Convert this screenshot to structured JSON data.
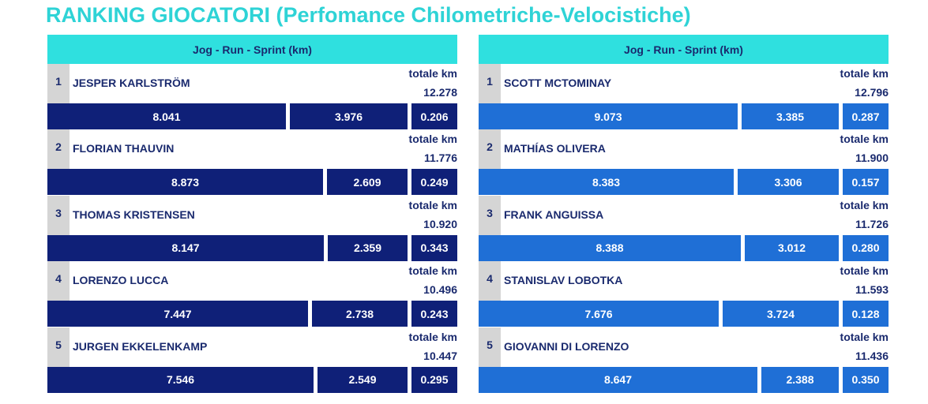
{
  "title": "RANKING GIOCATORI (Perfomance Chilometriche-Velocistiche)",
  "colors": {
    "title": "#2ed3d6",
    "header": "#2fe0df",
    "left_bars": "#0f2078",
    "right_bars": "#1f6fd6",
    "text": "#1a2a6e"
  },
  "chart_data": [
    {
      "type": "bar",
      "header": "Jog - Run - Sprint (km)",
      "total_label": "totale km",
      "players": [
        {
          "rank": "1",
          "name": "JESPER KARLSTRÖM",
          "total": "12.278",
          "values": [
            8.041,
            3.976,
            0.206
          ],
          "labels": [
            "8.041",
            "3.976",
            "0.206"
          ]
        },
        {
          "rank": "2",
          "name": "FLORIAN THAUVIN",
          "total": "11.776",
          "values": [
            8.873,
            2.609,
            0.249
          ],
          "labels": [
            "8.873",
            "2.609",
            "0.249"
          ]
        },
        {
          "rank": "3",
          "name": "THOMAS KRISTENSEN",
          "total": "10.920",
          "values": [
            8.147,
            2.359,
            0.343
          ],
          "labels": [
            "8.147",
            "2.359",
            "0.343"
          ]
        },
        {
          "rank": "4",
          "name": "LORENZO LUCCA",
          "total": "10.496",
          "values": [
            7.447,
            2.738,
            0.243
          ],
          "labels": [
            "7.447",
            "2.738",
            "0.243"
          ]
        },
        {
          "rank": "5",
          "name": "JURGEN EKKELENKAMP",
          "total": "10.447",
          "values": [
            7.546,
            2.549,
            0.295
          ],
          "labels": [
            "7.546",
            "2.549",
            "0.295"
          ]
        }
      ]
    },
    {
      "type": "bar",
      "header": "Jog - Run - Sprint (km)",
      "total_label": "totale km",
      "players": [
        {
          "rank": "1",
          "name": "SCOTT MCTOMINAY",
          "total": "12.796",
          "values": [
            9.073,
            3.385,
            0.287
          ],
          "labels": [
            "9.073",
            "3.385",
            "0.287"
          ]
        },
        {
          "rank": "2",
          "name": "MATHÍAS OLIVERA",
          "total": "11.900",
          "values": [
            8.383,
            3.306,
            0.157
          ],
          "labels": [
            "8.383",
            "3.306",
            "0.157"
          ]
        },
        {
          "rank": "3",
          "name": "FRANK ANGUISSA",
          "total": "11.726",
          "values": [
            8.388,
            3.012,
            0.28
          ],
          "labels": [
            "8.388",
            "3.012",
            "0.280"
          ]
        },
        {
          "rank": "4",
          "name": "STANISLAV LOBOTKA",
          "total": "11.593",
          "values": [
            7.676,
            3.724,
            0.128
          ],
          "labels": [
            "7.676",
            "3.724",
            "0.128"
          ]
        },
        {
          "rank": "5",
          "name": "GIOVANNI DI LORENZO",
          "total": "11.436",
          "values": [
            8.647,
            2.388,
            0.35
          ],
          "labels": [
            "8.647",
            "2.388",
            "0.350"
          ]
        }
      ]
    }
  ]
}
